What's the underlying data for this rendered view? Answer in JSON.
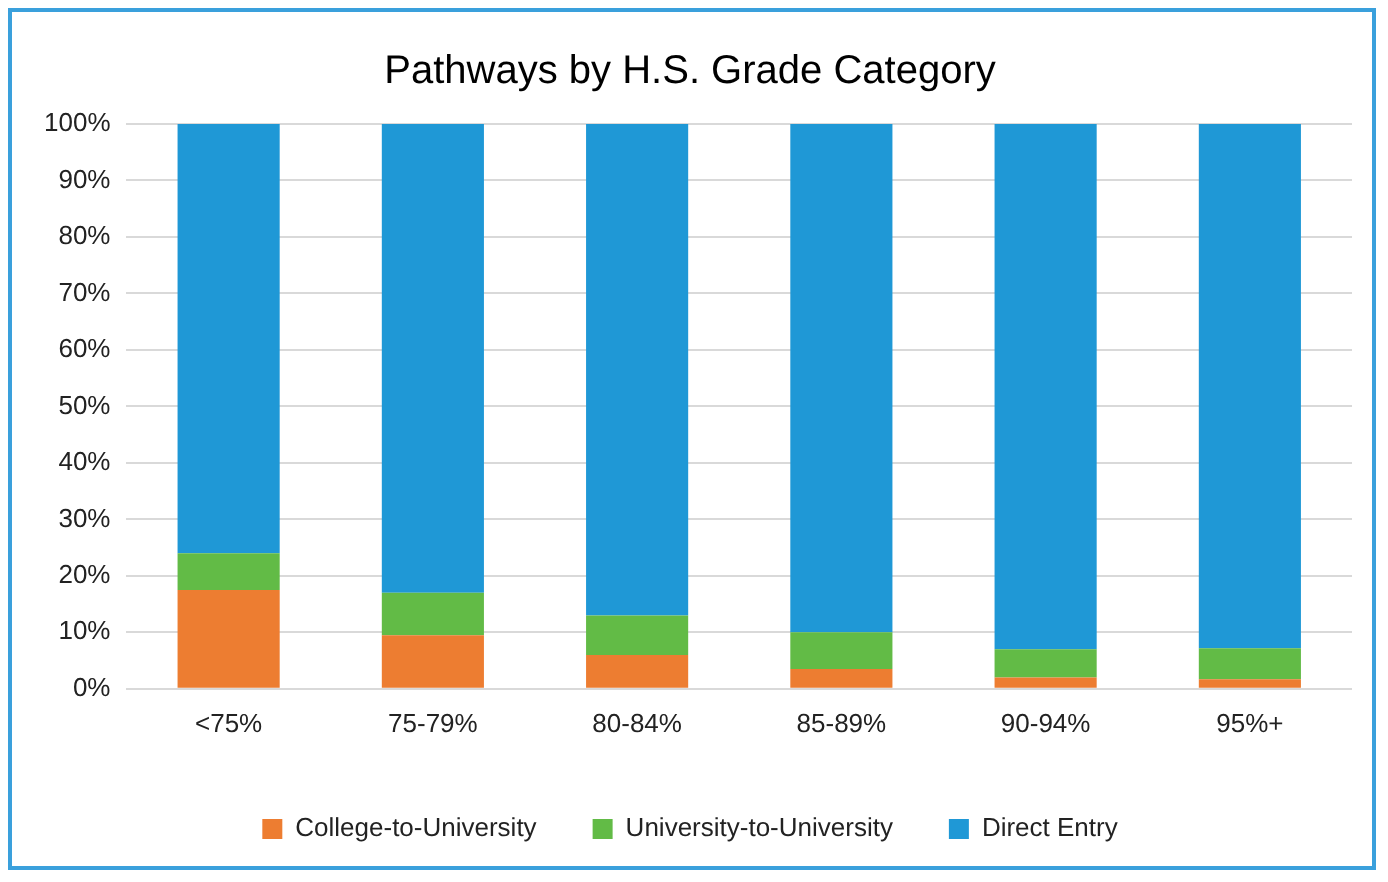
{
  "chart_data": {
    "type": "bar",
    "title": "Pathways by H.S. Grade Category",
    "stacked": true,
    "categories": [
      "<75%",
      "75-79%",
      "80-84%",
      "85-89%",
      "90-94%",
      "95%+"
    ],
    "series": [
      {
        "name": "College-to-University",
        "color": "#ed7d31",
        "values": [
          17.5,
          9.5,
          6,
          3.5,
          2,
          1.7
        ]
      },
      {
        "name": "University-to-University",
        "color": "#62bb46",
        "values": [
          6.5,
          7.5,
          7,
          6.5,
          5,
          5.5
        ]
      },
      {
        "name": "Direct Entry",
        "color": "#1f98d6",
        "values": [
          76,
          83,
          87,
          90,
          93,
          92.8
        ]
      }
    ],
    "ylim": [
      0,
      100
    ],
    "yticks": [
      {
        "value": 0,
        "label": "0%"
      },
      {
        "value": 10,
        "label": "10%"
      },
      {
        "value": 20,
        "label": "20%"
      },
      {
        "value": 30,
        "label": "30%"
      },
      {
        "value": 40,
        "label": "40%"
      },
      {
        "value": 50,
        "label": "50%"
      },
      {
        "value": 60,
        "label": "60%"
      },
      {
        "value": 70,
        "label": "70%"
      },
      {
        "value": 80,
        "label": "80%"
      },
      {
        "value": 90,
        "label": "90%"
      },
      {
        "value": 100,
        "label": "100%"
      }
    ],
    "grid": "y",
    "legend": "bottom"
  }
}
